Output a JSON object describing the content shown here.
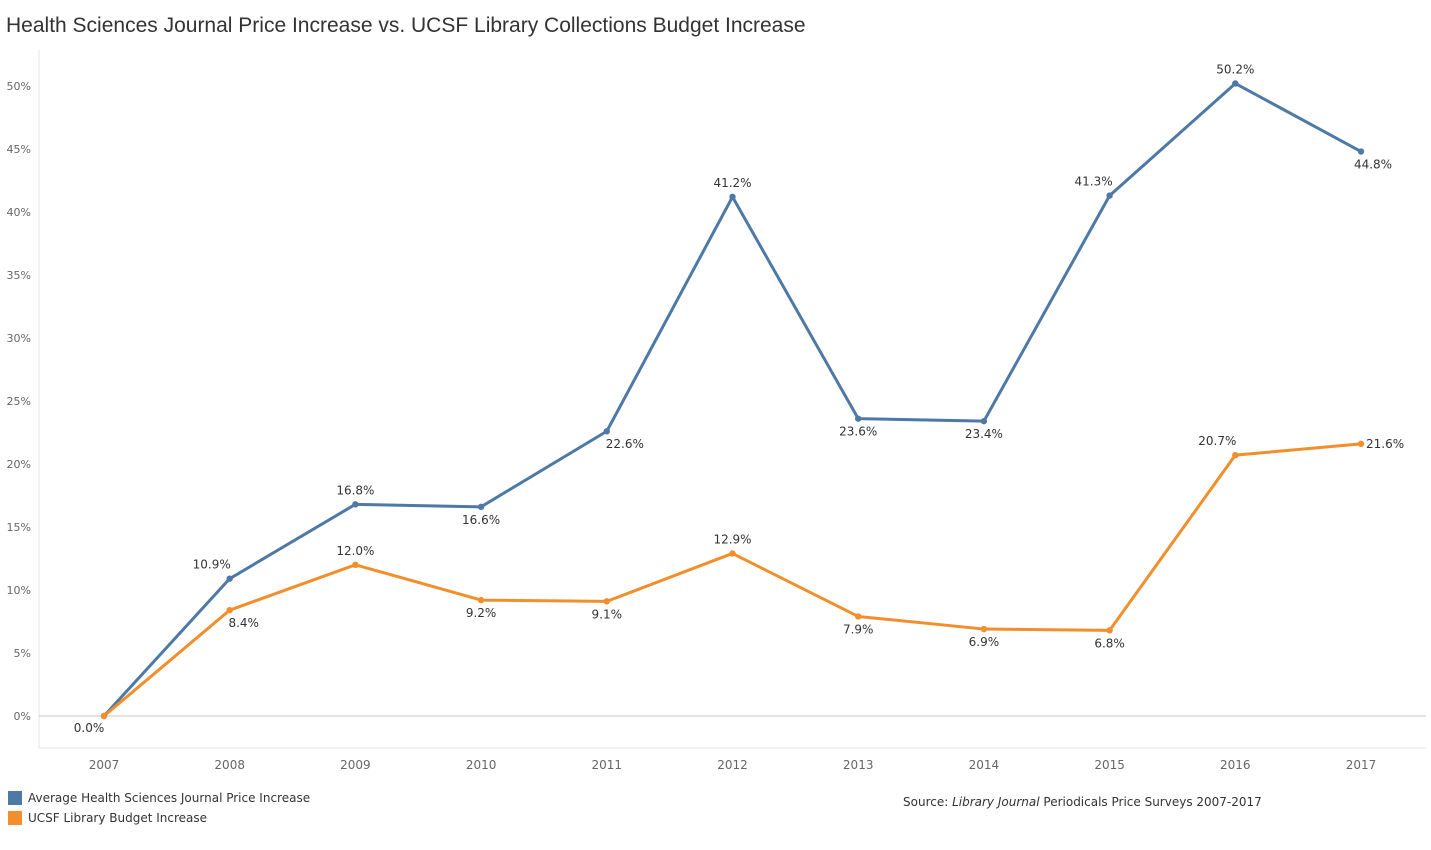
{
  "chart_data": {
    "type": "line",
    "title": "Health Sciences Journal Price Increase vs. UCSF Library Collections Budget Increase",
    "categories": [
      "2007",
      "2008",
      "2009",
      "2010",
      "2011",
      "2012",
      "2013",
      "2014",
      "2015",
      "2016",
      "2017"
    ],
    "y_ticks": [
      "0%",
      "5%",
      "10%",
      "15%",
      "20%",
      "25%",
      "30%",
      "35%",
      "40%",
      "45%",
      "50%"
    ],
    "ylim": [
      0,
      50
    ],
    "grid": false,
    "legend_position": "bottom-left",
    "series": [
      {
        "name": "Average Health Sciences Journal Price Increase",
        "color": "#4e79a7",
        "values": [
          0.0,
          10.9,
          16.8,
          16.6,
          22.6,
          41.2,
          23.6,
          23.4,
          41.3,
          50.2,
          44.8
        ],
        "labels": [
          "",
          "10.9%",
          "16.8%",
          "16.6%",
          "22.6%",
          "41.2%",
          "23.6%",
          "23.4%",
          "41.3%",
          "50.2%",
          "44.8%"
        ]
      },
      {
        "name": "UCSF Library Budget Increase",
        "color": "#f28e2b",
        "values": [
          0.0,
          8.4,
          12.0,
          9.2,
          9.1,
          12.9,
          7.9,
          6.9,
          6.8,
          20.7,
          21.6
        ],
        "labels": [
          "0.0%",
          "8.4%",
          "12.0%",
          "9.2%",
          "9.1%",
          "12.9%",
          "7.9%",
          "6.9%",
          "6.8%",
          "20.7%",
          "21.6%"
        ]
      }
    ],
    "source_prefix": "Source: ",
    "source_italic": "Library Journal",
    "source_suffix": " Periodicals Price Surveys 2007-2017"
  }
}
